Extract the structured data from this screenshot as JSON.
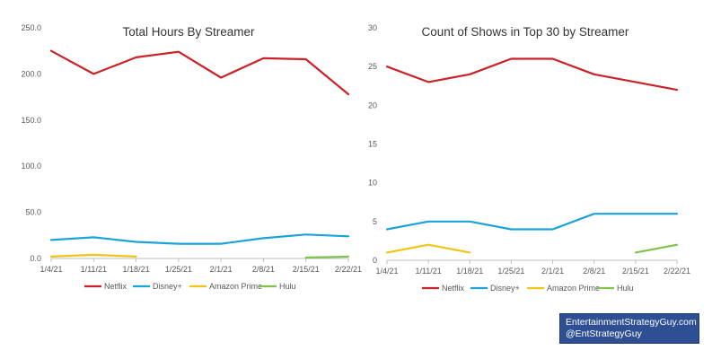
{
  "chart_data": [
    {
      "type": "line",
      "title": "Total Hours By Streamer",
      "xlabel": "",
      "ylabel": "",
      "categories": [
        "1/4/21",
        "1/11/21",
        "1/18/21",
        "1/25/21",
        "2/1/21",
        "2/8/21",
        "2/15/21",
        "2/22/21"
      ],
      "ylim": [
        0,
        250
      ],
      "yticks": [
        "0.0",
        "50.0",
        "100.0",
        "150.0",
        "200.0",
        "250.0"
      ],
      "legend_position": "bottom",
      "series": [
        {
          "name": "Netflix",
          "color": "#cc2127",
          "values": [
            225,
            200,
            218,
            224,
            196,
            217,
            216,
            178
          ]
        },
        {
          "name": "Disney+",
          "color": "#1aa3d9",
          "values": [
            20,
            23,
            18,
            16,
            16,
            22,
            26,
            24
          ]
        },
        {
          "name": "Amazon Prime",
          "color": "#f2c417",
          "values": [
            2,
            4,
            2,
            null,
            null,
            null,
            null,
            null
          ]
        },
        {
          "name": "Hulu",
          "color": "#7fc34c",
          "values": [
            null,
            null,
            null,
            null,
            null,
            null,
            1,
            2
          ]
        }
      ]
    },
    {
      "type": "line",
      "title": "Count of Shows in Top 30 by Streamer",
      "xlabel": "",
      "ylabel": "",
      "categories": [
        "1/4/21",
        "1/11/21",
        "1/18/21",
        "1/25/21",
        "2/1/21",
        "2/8/21",
        "2/15/21",
        "2/22/21"
      ],
      "ylim": [
        0,
        30
      ],
      "yticks": [
        "0",
        "5",
        "10",
        "15",
        "20",
        "25",
        "30"
      ],
      "legend_position": "bottom",
      "series": [
        {
          "name": "Netflix",
          "color": "#cc2127",
          "values": [
            25,
            23,
            24,
            26,
            26,
            24,
            23,
            22
          ]
        },
        {
          "name": "Disney+",
          "color": "#1aa3d9",
          "values": [
            4,
            5,
            5,
            4,
            4,
            6,
            6,
            6
          ]
        },
        {
          "name": "Amazon Prime",
          "color": "#f2c417",
          "values": [
            1,
            2,
            1,
            null,
            null,
            null,
            null,
            null
          ]
        },
        {
          "name": "Hulu",
          "color": "#7fc34c",
          "values": [
            null,
            null,
            null,
            null,
            null,
            null,
            1,
            2
          ]
        }
      ]
    }
  ],
  "watermark": {
    "line1": "EntertainmentStrategyGuy.com",
    "line2": "@EntStrategyGuy"
  }
}
